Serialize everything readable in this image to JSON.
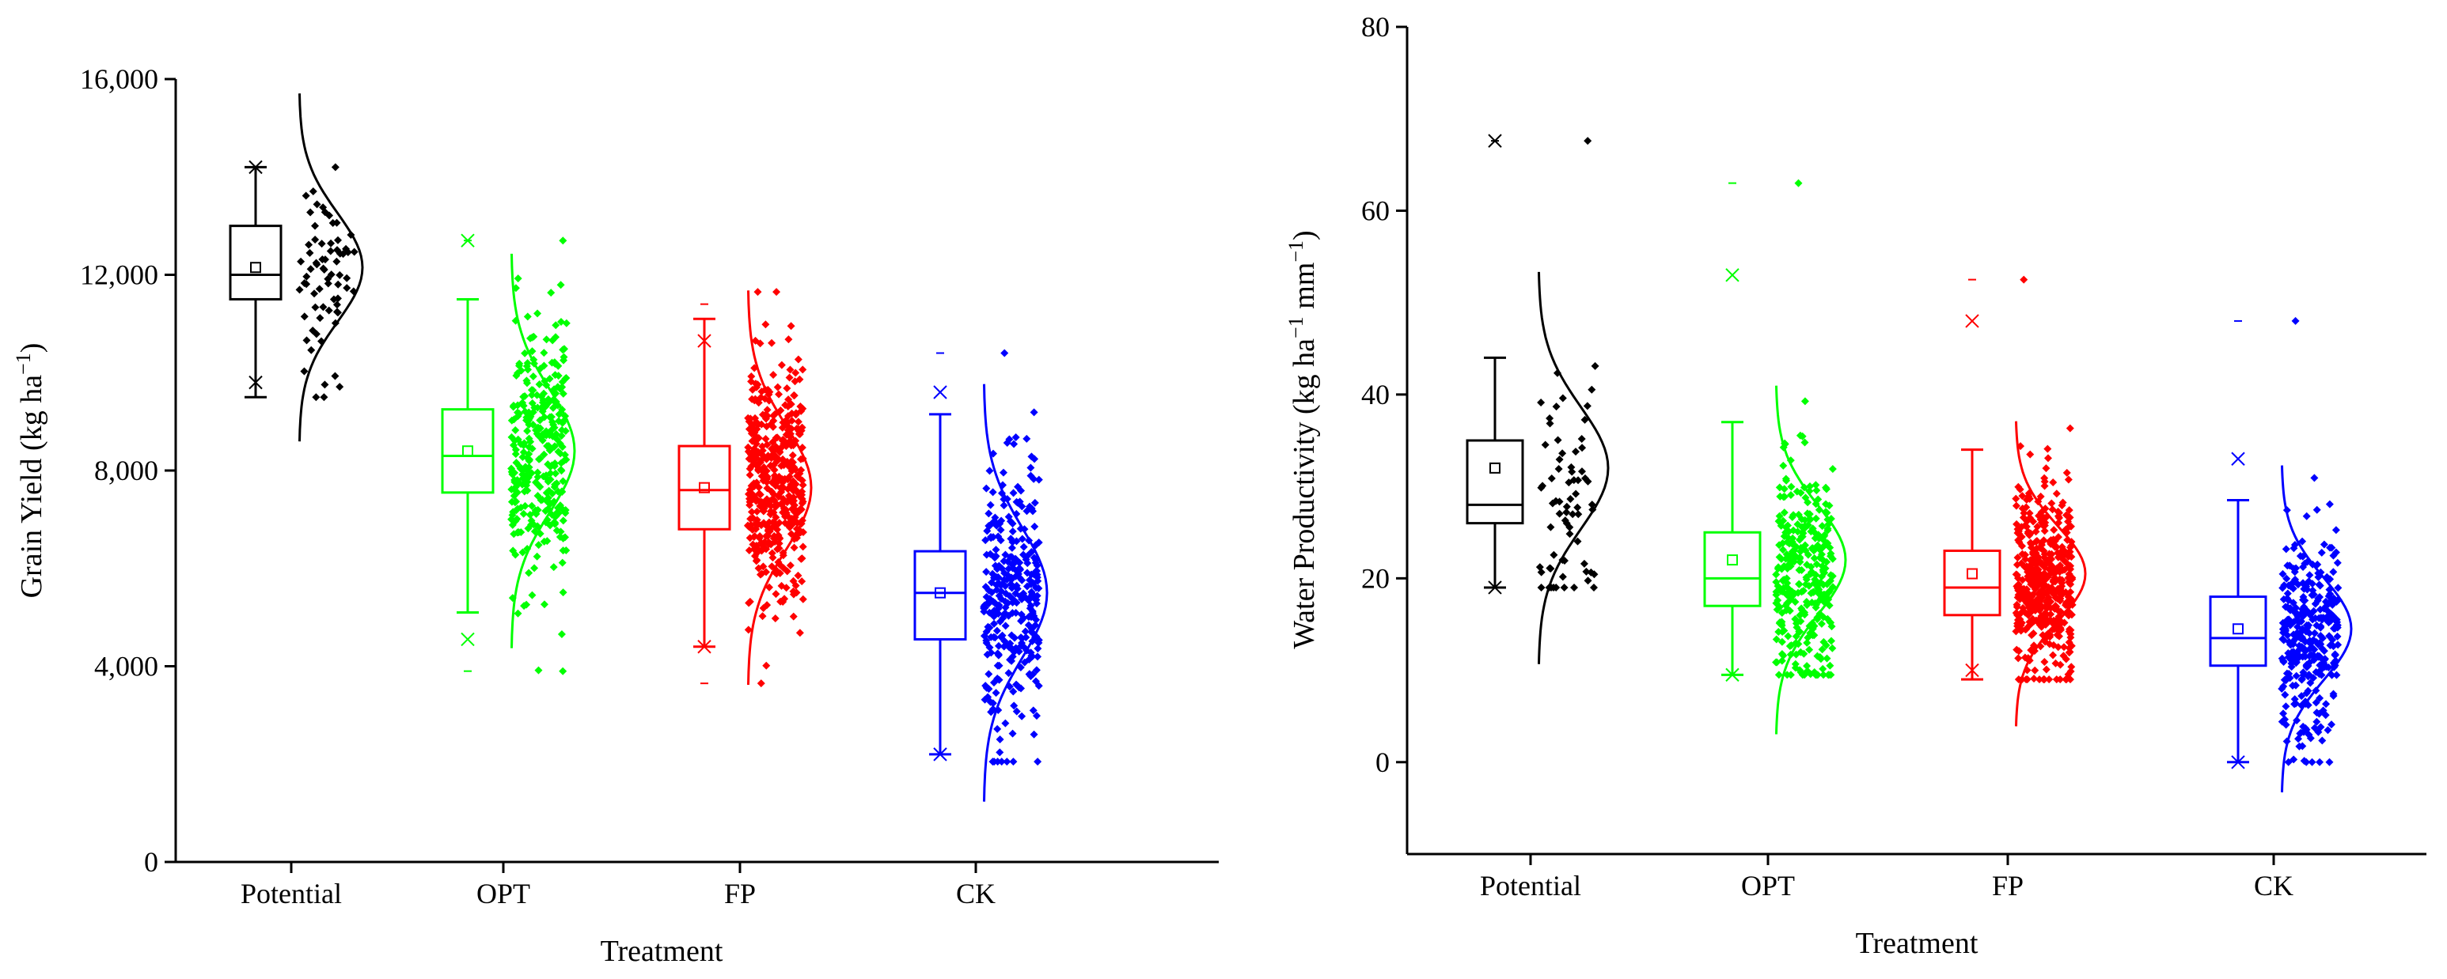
{
  "chart_data": [
    {
      "type": "box",
      "title": "",
      "xlabel": "Treatment",
      "ylabel": "Grain Yield (kg ha",
      "ylabel_sup": "−1",
      "ylabel_close": ")",
      "ylim": [
        0,
        16000
      ],
      "yticks": [
        0,
        4000,
        8000,
        12000,
        16000
      ],
      "ytick_labels": [
        "0",
        "4,000",
        "8,000",
        "12,000",
        "16,000"
      ],
      "categories": [
        "Potential",
        "OPT",
        "FP",
        "CK"
      ],
      "series": [
        {
          "name": "Potential",
          "color": "#000000",
          "n": 70,
          "min": 9500,
          "q1": 11500,
          "median": 12000,
          "q3": 13000,
          "max": 14200,
          "mean": 12150,
          "p1": 9800,
          "p99": 14200,
          "range_min": 9500,
          "range_max": 14200,
          "data_min": 9500,
          "data_max": 14200
        },
        {
          "name": "OPT",
          "color": "#00ff00",
          "n": 330,
          "min": 5100,
          "q1": 7550,
          "median": 8300,
          "q3": 9250,
          "max": 11500,
          "mean": 8400,
          "p1": 4550,
          "p99": 12700,
          "range_min": 3900,
          "range_max": 12700,
          "data_min": 3900,
          "data_max": 12700
        },
        {
          "name": "FP",
          "color": "#ff0000",
          "n": 460,
          "min": 4400,
          "q1": 6800,
          "median": 7600,
          "q3": 8500,
          "max": 11100,
          "mean": 7650,
          "p1": 4400,
          "p99": 10650,
          "range_min": 3650,
          "range_max": 11400,
          "data_min": 3650,
          "data_max": 11650
        },
        {
          "name": "CK",
          "color": "#0000ff",
          "n": 330,
          "min": 2200,
          "q1": 4550,
          "median": 5500,
          "q3": 6350,
          "max": 9150,
          "mean": 5500,
          "p1": 2200,
          "p99": 9600,
          "range_min": 2200,
          "range_max": 10400,
          "data_min": 2050,
          "data_max": 10400
        }
      ]
    },
    {
      "type": "box",
      "title": "",
      "xlabel": "Treatment",
      "ylabel": "Water Productivity (kg ha",
      "ylabel_sup": "−1",
      "ylabel_mid": " mm",
      "ylabel_sup2": "−1",
      "ylabel_close": ")",
      "ylim": [
        -10,
        80
      ],
      "yticks": [
        0,
        20,
        40,
        60,
        80
      ],
      "ytick_labels": [
        "0",
        "20",
        "40",
        "60",
        "80"
      ],
      "categories": [
        "Potential",
        "OPT",
        "FP",
        "CK"
      ],
      "series": [
        {
          "name": "Potential",
          "color": "#000000",
          "n": 70,
          "min": 19,
          "q1": 26,
          "median": 28,
          "q3": 35,
          "max": 44,
          "mean": 32,
          "p1": 19,
          "p99": 67.6,
          "range_min": 19,
          "range_max": 67.6,
          "data_min": 19,
          "data_max": 67.6
        },
        {
          "name": "OPT",
          "color": "#00ff00",
          "n": 330,
          "min": 9.5,
          "q1": 17,
          "median": 20,
          "q3": 25,
          "max": 37,
          "mean": 22,
          "p1": 9.5,
          "p99": 53,
          "range_min": 9.5,
          "range_max": 63,
          "data_min": 9.5,
          "data_max": 63
        },
        {
          "name": "FP",
          "color": "#ff0000",
          "n": 460,
          "min": 9,
          "q1": 16,
          "median": 19,
          "q3": 23,
          "max": 34,
          "mean": 20.5,
          "p1": 10,
          "p99": 48,
          "range_min": 9,
          "range_max": 52.5,
          "data_min": 9,
          "data_max": 52.5
        },
        {
          "name": "CK",
          "color": "#0000ff",
          "n": 330,
          "min": 0,
          "q1": 10.5,
          "median": 13.5,
          "q3": 18,
          "max": 28.5,
          "mean": 14.5,
          "p1": 0,
          "p99": 33,
          "range_min": 0,
          "range_max": 48,
          "data_min": 0,
          "data_max": 48
        }
      ]
    }
  ]
}
